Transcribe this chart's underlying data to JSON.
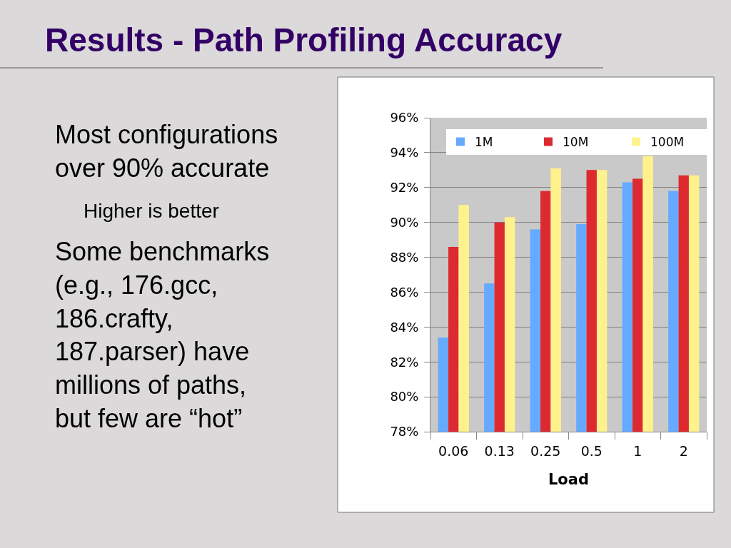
{
  "chart_data": {
    "type": "bar",
    "title": "Results - Path Profiling Accuracy",
    "xlabel": "Load",
    "categories": [
      "0.06",
      "0.13",
      "0.25",
      "0.5",
      "1",
      "2"
    ],
    "series": [
      {
        "name": "1M",
        "color": "#66aaff",
        "values": [
          83.4,
          86.5,
          89.6,
          89.9,
          92.3,
          91.8
        ]
      },
      {
        "name": "10M",
        "color": "#dd2a30",
        "values": [
          88.6,
          90.0,
          91.8,
          93.0,
          92.5,
          92.7
        ]
      },
      {
        "name": "100M",
        "color": "#fff28c",
        "values": [
          91.0,
          90.3,
          93.1,
          93.0,
          93.8,
          92.7
        ]
      }
    ],
    "ylim": [
      78,
      96
    ],
    "yticks": [
      {
        "value": 78,
        "label": "78%"
      },
      {
        "value": 80,
        "label": "80%"
      },
      {
        "value": 82,
        "label": "82%"
      },
      {
        "value": 84,
        "label": "84%"
      },
      {
        "value": 86,
        "label": "86%"
      },
      {
        "value": 88,
        "label": "88%"
      },
      {
        "value": 90,
        "label": "90%"
      },
      {
        "value": 92,
        "label": "92%"
      },
      {
        "value": 94,
        "label": "94%"
      },
      {
        "value": 96,
        "label": "96%"
      }
    ],
    "grid": "y",
    "legend": "top",
    "annotations": [
      "Most configurations\nover 90% accurate",
      "Higher is better",
      "Some benchmarks\n(e.g., 176.gcc,\n186.crafty,\n187.parser) have\nmillions of paths,\nbut few are “hot”"
    ]
  }
}
